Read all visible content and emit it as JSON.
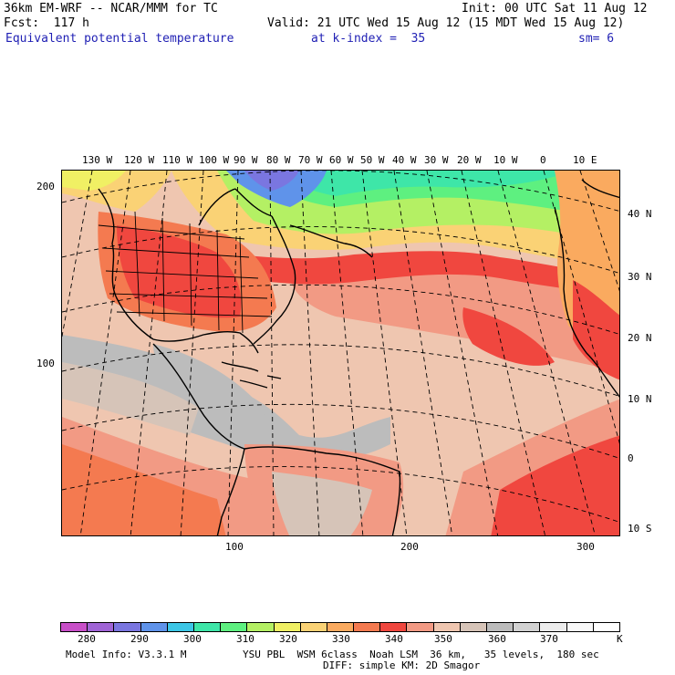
{
  "header": {
    "model_title": "36km EM-WRF -- NCAR/MMM for TC",
    "init_time": "Init: 00 UTC Sat 11 Aug 12",
    "forecast": "Fcst:  117 h",
    "valid_time": "Valid: 21 UTC Wed 15 Aug 12 (15 MDT Wed 15 Aug 12)",
    "field_name": "Equivalent potential temperature",
    "level": "at k-index =  35",
    "smoothing": "sm= 6"
  },
  "map": {
    "lon_labels": [
      "130 W",
      "120 W",
      "110 W",
      "100 W",
      "90 W",
      "80 W",
      "70 W",
      "60 W",
      "50 W",
      "40 W",
      "30 W",
      "20 W",
      "10 W",
      "0",
      "10 E"
    ],
    "lat_labels": [
      "40 N",
      "30 N",
      "20 N",
      "10 N",
      "0",
      "10 S"
    ],
    "grid_y_labels": [
      "200",
      "100"
    ],
    "grid_x_labels": [
      "100",
      "200",
      "300"
    ]
  },
  "colorbar": {
    "colors": [
      "#c84fc8",
      "#a064d6",
      "#7a76e0",
      "#5f93ea",
      "#3cc6e6",
      "#3ee6a8",
      "#5ef080",
      "#b4f064",
      "#f0f064",
      "#fad275",
      "#faaa5f",
      "#f47a50",
      "#f0473f",
      "#f29a84",
      "#efc6b0",
      "#d6c4b8",
      "#bcbcbc",
      "#d2d2d2",
      "#ececec",
      "#f8f8f8",
      "#ffffff"
    ],
    "tick_labels": [
      "280",
      "290",
      "300",
      "310",
      "320",
      "330",
      "340",
      "350",
      "360",
      "370"
    ],
    "unit": "K"
  },
  "footer": {
    "model_info": "Model Info: V3.3.1 M",
    "physics": "YSU PBL  WSM 6class  Noah LSM  36 km,   35 levels,  180 sec",
    "diffusion": "DIFF: simple KM: 2D Smagor"
  }
}
